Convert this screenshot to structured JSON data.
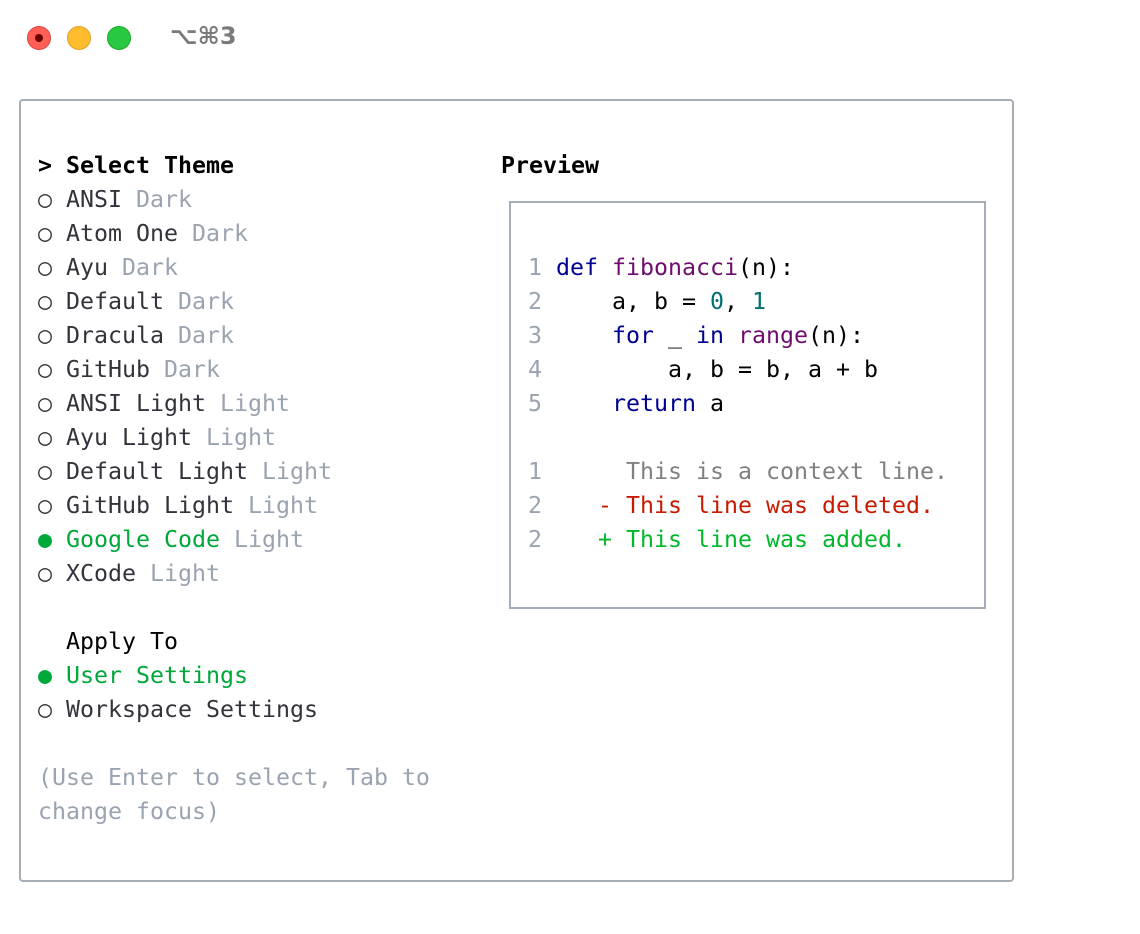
{
  "window": {
    "title": "⌥⌘3",
    "controls": {
      "close": "#ff5f57",
      "minimize": "#febc2e",
      "zoom": "#28c840"
    }
  },
  "theme_section": {
    "prompt": ">",
    "heading": "Select Theme"
  },
  "themes": [
    {
      "name": "ANSI",
      "kind": "Dark",
      "selected": false
    },
    {
      "name": "Atom One",
      "kind": "Dark",
      "selected": false
    },
    {
      "name": "Ayu",
      "kind": "Dark",
      "selected": false
    },
    {
      "name": "Default",
      "kind": "Dark",
      "selected": false
    },
    {
      "name": "Dracula",
      "kind": "Dark",
      "selected": false
    },
    {
      "name": "GitHub",
      "kind": "Dark",
      "selected": false
    },
    {
      "name": "ANSI Light",
      "kind": "Light",
      "selected": false
    },
    {
      "name": "Ayu Light",
      "kind": "Light",
      "selected": false
    },
    {
      "name": "Default Light",
      "kind": "Light",
      "selected": false
    },
    {
      "name": "GitHub Light",
      "kind": "Light",
      "selected": false
    },
    {
      "name": "Google Code",
      "kind": "Light",
      "selected": true
    },
    {
      "name": "XCode",
      "kind": "Light",
      "selected": false
    }
  ],
  "apply_section": {
    "heading": "Apply To",
    "options": [
      {
        "label": "User Settings",
        "selected": true
      },
      {
        "label": "Workspace Settings",
        "selected": false
      }
    ]
  },
  "radio": {
    "on": "●",
    "off": "○"
  },
  "hint": [
    "(Use Enter to select, Tab to",
    "change focus)"
  ],
  "preview": {
    "heading": "Preview",
    "code": {
      "ln": [
        "1",
        "2",
        "3",
        "4",
        "5"
      ],
      "l1": [
        "def",
        " ",
        "fibonacci",
        "(n):"
      ],
      "l2": [
        "    a, b = ",
        "0",
        ", ",
        "1"
      ],
      "l3": [
        "    ",
        "for",
        " _ ",
        "in",
        " ",
        "range",
        "(n):"
      ],
      "l4": [
        "        a, b = b, a + b"
      ],
      "l5": [
        "    ",
        "return",
        " a"
      ]
    },
    "diff": [
      {
        "ln": "1",
        "marker": " ",
        "text": "This is a context line."
      },
      {
        "ln": "2",
        "marker": "-",
        "text": "This line was deleted."
      },
      {
        "ln": "2",
        "marker": "+",
        "text": "This line was added."
      }
    ]
  },
  "colors": {
    "accent": "#00a83a",
    "muted": "#9aa3b0",
    "keyword": "#000090",
    "function": "#6e0d6e",
    "number": "#007070",
    "deleted": "#c81a00",
    "added": "#00b82a"
  }
}
